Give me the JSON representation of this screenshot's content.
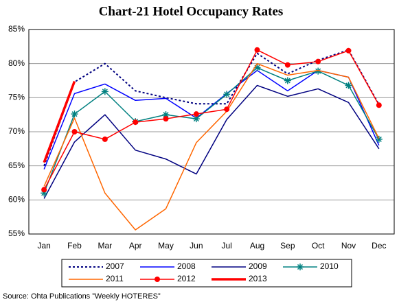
{
  "chart_data": {
    "type": "line",
    "title": "Chart-21 Hotel Occupancy Rates",
    "categories": [
      "Jan",
      "Feb",
      "Mar",
      "Apr",
      "May",
      "Jun",
      "Jul",
      "Aug",
      "Sep",
      "Oct",
      "Nov",
      "Dec"
    ],
    "series": [
      {
        "name": "2007",
        "color": "#000080",
        "style": "dotted",
        "values": [
          65,
          77.3,
          80,
          76,
          75,
          74.1,
          74.1,
          81.5,
          78.5,
          80.5,
          82,
          74
        ]
      },
      {
        "name": "2008",
        "color": "#0000ff",
        "style": "solid",
        "values": [
          64.5,
          75.6,
          77,
          74.6,
          74.9,
          72,
          75.6,
          79,
          76,
          79,
          78,
          68
        ]
      },
      {
        "name": "2009",
        "color": "#000080",
        "style": "solid",
        "values": [
          60.2,
          68.5,
          72.5,
          67.3,
          66,
          63.8,
          71.8,
          76.8,
          75.2,
          76.3,
          74.3,
          67.5
        ]
      },
      {
        "name": "2010",
        "color": "#008080",
        "style": "solid",
        "marker": "star",
        "values": [
          61,
          72.6,
          75.9,
          71.5,
          72.5,
          71.9,
          75.5,
          79.4,
          77.5,
          78.9,
          76.8,
          68.9
        ]
      },
      {
        "name": "2011",
        "color": "#ff6600",
        "style": "solid",
        "values": [
          62,
          72,
          61,
          55.6,
          58.7,
          68.4,
          73,
          80,
          78.3,
          79,
          78,
          69
        ]
      },
      {
        "name": "2012",
        "color": "#ff0000",
        "style": "solid",
        "marker": "circle",
        "values": [
          61.5,
          70,
          68.9,
          71.4,
          71.9,
          72.6,
          73.3,
          82,
          79.8,
          80.3,
          81.9,
          73.9
        ]
      },
      {
        "name": "2013",
        "color": "#ff0000",
        "style": "bold",
        "values": [
          65.5,
          77.4,
          null,
          null,
          null,
          null,
          null,
          null,
          null,
          null,
          null,
          null
        ]
      }
    ],
    "ylim": [
      55,
      85
    ],
    "yticks": [
      {
        "value": 55,
        "label": "55%"
      },
      {
        "value": 60,
        "label": "60%"
      },
      {
        "value": 65,
        "label": "65%"
      },
      {
        "value": 70,
        "label": "70%"
      },
      {
        "value": 75,
        "label": "75%"
      },
      {
        "value": 80,
        "label": "80%"
      },
      {
        "value": 85,
        "label": "85%"
      }
    ],
    "grid": true,
    "legend": "bottom",
    "source": "Source: Ohta Publications ”Weekly HOTERES”"
  }
}
